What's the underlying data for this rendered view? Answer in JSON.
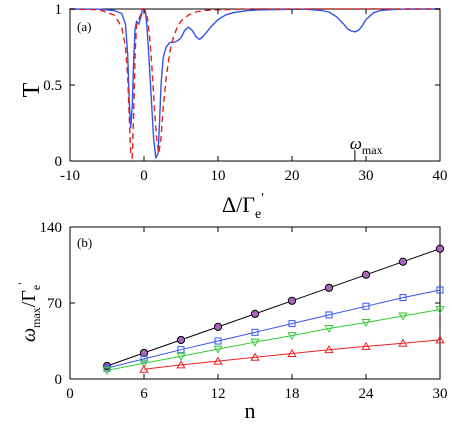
{
  "chart_data": [
    {
      "type": "line",
      "panel_label": "(a)",
      "xlabel": {
        "main": "Δ/Γ",
        "sub": "e",
        "sup": "'"
      },
      "ylabel": "T",
      "xlim": [
        -10,
        40
      ],
      "ylim": [
        0,
        1
      ],
      "xticks": [
        "-10",
        "0",
        "10",
        "20",
        "30",
        "40"
      ],
      "yticks": [
        "0",
        "0.5",
        "1"
      ],
      "annotation": {
        "text": "ω",
        "sub": "max",
        "x": 28.5
      },
      "grid": false,
      "series": [
        {
          "style": "solid",
          "color": "#3355ee",
          "x": [
            -10,
            -6,
            -4,
            -3,
            -2.5,
            -2.2,
            -2,
            -1.8,
            -1.6,
            -1.4,
            -1.2,
            -1,
            -0.7,
            -0.4,
            -0.2,
            0,
            0.2,
            0.4,
            0.7,
            1,
            1.3,
            1.6,
            1.9,
            2.1,
            2.3,
            2.6,
            3,
            3.5,
            4,
            4.5,
            5,
            5.5,
            6,
            6.5,
            7,
            7.5,
            8,
            9,
            10,
            11,
            12,
            14,
            16,
            18,
            20,
            22,
            24,
            25,
            26,
            27,
            27.5,
            28,
            28.5,
            29,
            29.5,
            30,
            31,
            32,
            34,
            36,
            38,
            40
          ],
          "y": [
            1,
            0.999,
            0.99,
            0.97,
            0.9,
            0.7,
            0.4,
            0.22,
            0.35,
            0.65,
            0.87,
            0.92,
            0.9,
            0.95,
            1,
            1,
            0.98,
            0.88,
            0.65,
            0.4,
            0.15,
            0.02,
            0.05,
            0.25,
            0.5,
            0.68,
            0.75,
            0.78,
            0.78,
            0.79,
            0.81,
            0.86,
            0.88,
            0.86,
            0.82,
            0.8,
            0.82,
            0.88,
            0.93,
            0.96,
            0.975,
            0.99,
            0.995,
            0.997,
            0.998,
            0.998,
            0.99,
            0.98,
            0.95,
            0.9,
            0.87,
            0.855,
            0.85,
            0.86,
            0.89,
            0.93,
            0.975,
            0.99,
            0.998,
            1,
            1,
            1
          ]
        },
        {
          "style": "dashed",
          "color": "#dd2222",
          "x": [
            -10,
            -6,
            -4,
            -3,
            -2.5,
            -2.2,
            -2,
            -1.8,
            -1.6,
            -1.4,
            -1.2,
            -1,
            -0.7,
            -0.4,
            -0.2,
            0,
            0.2,
            0.5,
            0.8,
            1.1,
            1.4,
            1.7,
            2,
            2.3,
            2.6,
            3,
            3.5,
            4,
            4.5,
            5,
            6,
            7,
            8,
            10,
            15,
            20,
            30,
            40
          ],
          "y": [
            1,
            0.995,
            0.96,
            0.88,
            0.75,
            0.55,
            0.3,
            0.05,
            0.02,
            0.3,
            0.7,
            0.9,
            0.93,
            0.97,
            1,
            1,
            0.98,
            0.93,
            0.8,
            0.6,
            0.35,
            0.15,
            0.05,
            0.15,
            0.35,
            0.55,
            0.72,
            0.82,
            0.88,
            0.92,
            0.96,
            0.98,
            0.99,
            0.995,
            1,
            1,
            1,
            1
          ]
        }
      ]
    },
    {
      "type": "line",
      "panel_label": "(b)",
      "xlabel": "n",
      "ylabel": {
        "main": "ω",
        "sub": "max",
        "mid": "/Γ",
        "sub2": "e",
        "sup": "'"
      },
      "xlim": [
        0,
        30
      ],
      "ylim": [
        0,
        140
      ],
      "xticks": [
        "0",
        "6",
        "12",
        "18",
        "24",
        "30"
      ],
      "yticks": [
        "0",
        "70",
        "140"
      ],
      "grid": false,
      "series": [
        {
          "marker": "circle",
          "color": "#000000",
          "fill": "#aa66bb",
          "x": [
            3,
            6,
            9,
            12,
            15,
            18,
            21,
            24,
            27,
            30
          ],
          "y": [
            12,
            24,
            36,
            48,
            60,
            72,
            84,
            96,
            108,
            120
          ]
        },
        {
          "marker": "square",
          "color": "#3355ee",
          "fill": "none",
          "x": [
            3,
            6,
            9,
            12,
            15,
            18,
            21,
            24,
            27,
            30
          ],
          "y": [
            10,
            18.5,
            27,
            35,
            43,
            51,
            59,
            67,
            75,
            82
          ]
        },
        {
          "marker": "triangle-down",
          "color": "#33cc33",
          "fill": "none",
          "x": [
            3,
            6,
            9,
            12,
            15,
            18,
            21,
            24,
            27,
            30
          ],
          "y": [
            8,
            14.5,
            21,
            27.5,
            34,
            40,
            46.5,
            52,
            58,
            64
          ]
        },
        {
          "marker": "triangle-up",
          "color": "#ee2222",
          "fill": "none",
          "x": [
            6,
            9,
            12,
            15,
            18,
            21,
            24,
            27,
            30
          ],
          "y": [
            9,
            13,
            16.5,
            20,
            23.5,
            27,
            30,
            33,
            36
          ]
        }
      ]
    }
  ]
}
